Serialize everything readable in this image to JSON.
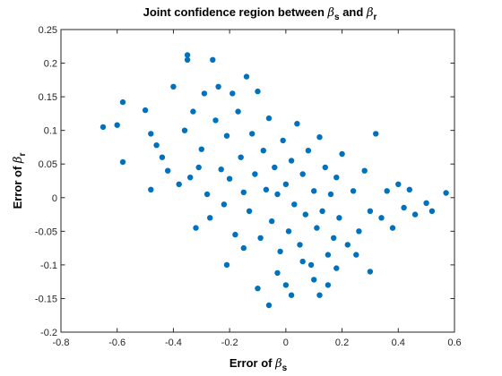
{
  "chart_data": {
    "type": "scatter",
    "title": {
      "prefix": "Joint confidence region between ",
      "beta1": "β",
      "sub1": "s",
      "middle": " and ",
      "beta2": "β",
      "sub2": "r"
    },
    "xlabel": {
      "prefix": "Error of ",
      "beta": "β",
      "sub": "s"
    },
    "ylabel": {
      "prefix": "Error of ",
      "beta": "β",
      "sub": "r"
    },
    "xlim": [
      -0.8,
      0.6
    ],
    "ylim": [
      -0.2,
      0.25
    ],
    "xticks": [
      -0.8,
      -0.6,
      -0.4,
      -0.2,
      0,
      0.2,
      0.4,
      0.6
    ],
    "xtick_labels": [
      "-0.8",
      "-0.6",
      "-0.4",
      "-0.2",
      "0",
      "0.2",
      "0.4",
      "0.6"
    ],
    "yticks": [
      -0.2,
      -0.15,
      -0.1,
      -0.05,
      0,
      0.05,
      0.1,
      0.15,
      0.2,
      0.25
    ],
    "ytick_labels": [
      "-0.2",
      "-0.15",
      "-0.1",
      "-0.05",
      "0",
      "0.05",
      "0.1",
      "0.15",
      "0.2",
      "0.25"
    ],
    "grid": false,
    "marker_color": "#0072BD",
    "series": [
      {
        "values": [
          [
            -0.65,
            0.105
          ],
          [
            -0.6,
            0.108
          ],
          [
            -0.58,
            0.142
          ],
          [
            -0.58,
            0.053
          ],
          [
            -0.5,
            0.13
          ],
          [
            -0.48,
            0.095
          ],
          [
            -0.48,
            0.012
          ],
          [
            -0.46,
            0.078
          ],
          [
            -0.44,
            0.06
          ],
          [
            -0.42,
            0.04
          ],
          [
            -0.4,
            0.165
          ],
          [
            -0.38,
            0.02
          ],
          [
            -0.36,
            0.1
          ],
          [
            -0.35,
            0.212
          ],
          [
            -0.35,
            0.205
          ],
          [
            -0.34,
            0.03
          ],
          [
            -0.33,
            0.128
          ],
          [
            -0.32,
            -0.045
          ],
          [
            -0.31,
            0.045
          ],
          [
            -0.3,
            0.072
          ],
          [
            -0.29,
            0.155
          ],
          [
            -0.28,
            0.005
          ],
          [
            -0.27,
            -0.03
          ],
          [
            -0.26,
            0.205
          ],
          [
            -0.25,
            0.115
          ],
          [
            -0.24,
            0.165
          ],
          [
            -0.23,
            0.042
          ],
          [
            -0.22,
            -0.01
          ],
          [
            -0.21,
            0.092
          ],
          [
            -0.2,
            0.028
          ],
          [
            -0.19,
            0.155
          ],
          [
            -0.18,
            -0.055
          ],
          [
            -0.17,
            0.128
          ],
          [
            -0.16,
            0.06
          ],
          [
            -0.15,
            0.008
          ],
          [
            -0.14,
            0.18
          ],
          [
            -0.13,
            -0.02
          ],
          [
            -0.12,
            0.095
          ],
          [
            -0.11,
            0.035
          ],
          [
            -0.1,
            0.158
          ],
          [
            -0.09,
            -0.06
          ],
          [
            -0.08,
            0.07
          ],
          [
            -0.07,
            0.012
          ],
          [
            -0.06,
            0.118
          ],
          [
            -0.05,
            -0.035
          ],
          [
            -0.04,
            0.045
          ],
          [
            -0.03,
            0.005
          ],
          [
            -0.02,
            -0.08
          ],
          [
            -0.01,
            0.085
          ],
          [
            0.0,
            0.02
          ],
          [
            0.01,
            -0.05
          ],
          [
            0.02,
            0.055
          ],
          [
            0.03,
            -0.01
          ],
          [
            0.04,
            0.11
          ],
          [
            0.05,
            -0.07
          ],
          [
            0.06,
            0.035
          ],
          [
            0.07,
            -0.025
          ],
          [
            0.08,
            0.07
          ],
          [
            0.09,
            -0.1
          ],
          [
            0.1,
            0.01
          ],
          [
            0.11,
            -0.045
          ],
          [
            0.12,
            0.09
          ],
          [
            0.13,
            -0.02
          ],
          [
            0.14,
            0.045
          ],
          [
            0.15,
            -0.085
          ],
          [
            0.16,
            0.005
          ],
          [
            0.17,
            -0.06
          ],
          [
            0.18,
            0.03
          ],
          [
            0.19,
            -0.03
          ],
          [
            0.2,
            0.065
          ],
          [
            0.22,
            -0.07
          ],
          [
            0.24,
            0.01
          ],
          [
            0.26,
            -0.05
          ],
          [
            0.28,
            0.04
          ],
          [
            0.3,
            -0.02
          ],
          [
            0.32,
            0.095
          ],
          [
            0.34,
            -0.03
          ],
          [
            0.36,
            0.01
          ],
          [
            0.38,
            -0.045
          ],
          [
            0.4,
            0.02
          ],
          [
            0.42,
            -0.015
          ],
          [
            0.44,
            0.012
          ],
          [
            0.46,
            -0.025
          ],
          [
            0.5,
            -0.008
          ],
          [
            0.52,
            -0.02
          ],
          [
            0.57,
            0.007
          ],
          [
            -0.06,
            -0.16
          ],
          [
            0.02,
            -0.145
          ],
          [
            0.1,
            -0.122
          ],
          [
            0.18,
            -0.105
          ],
          [
            -0.1,
            -0.135
          ],
          [
            0.06,
            -0.095
          ],
          [
            -0.03,
            -0.112
          ],
          [
            0.25,
            -0.085
          ],
          [
            0.12,
            -0.145
          ],
          [
            -0.15,
            -0.075
          ],
          [
            0.3,
            -0.11
          ],
          [
            0.0,
            -0.13
          ],
          [
            -0.21,
            -0.1
          ],
          [
            0.15,
            -0.13
          ]
        ]
      }
    ]
  }
}
